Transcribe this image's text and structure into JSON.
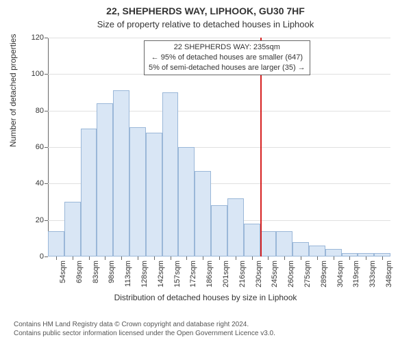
{
  "title_main": "22, SHEPHERDS WAY, LIPHOOK, GU30 7HF",
  "title_sub": "Size of property relative to detached houses in Liphook",
  "ylabel": "Number of detached properties",
  "xlabel": "Distribution of detached houses by size in Liphook",
  "chart": {
    "type": "histogram",
    "ylim": [
      0,
      120
    ],
    "ytick_step": 20,
    "bar_fill": "#d9e6f5",
    "bar_border": "#9ab7d8",
    "grid_color": "#e0e0e0",
    "axis_color": "#666666",
    "background_color": "#ffffff",
    "bar_count": 21,
    "categories": [
      "54sqm",
      "69sqm",
      "83sqm",
      "98sqm",
      "113sqm",
      "128sqm",
      "142sqm",
      "157sqm",
      "172sqm",
      "186sqm",
      "201sqm",
      "216sqm",
      "230sqm",
      "245sqm",
      "260sqm",
      "275sqm",
      "289sqm",
      "304sqm",
      "319sqm",
      "333sqm",
      "348sqm"
    ],
    "values": [
      14,
      30,
      70,
      84,
      91,
      71,
      68,
      90,
      60,
      47,
      28,
      32,
      18,
      14,
      14,
      8,
      6,
      4,
      2,
      2,
      2
    ]
  },
  "marker": {
    "color": "#d62020",
    "bin_index": 12,
    "position": "right"
  },
  "annotation": {
    "line1": "22 SHEPHERDS WAY: 235sqm",
    "line2": "← 95% of detached houses are smaller (647)",
    "line3": "5% of semi-detached houses are larger (35) →",
    "border_color": "#666666",
    "bg_color": "#ffffff",
    "fontsize": 11
  },
  "footer": {
    "line1": "Contains HM Land Registry data © Crown copyright and database right 2024.",
    "line2": "Contains public sector information licensed under the Open Government Licence v3.0."
  }
}
